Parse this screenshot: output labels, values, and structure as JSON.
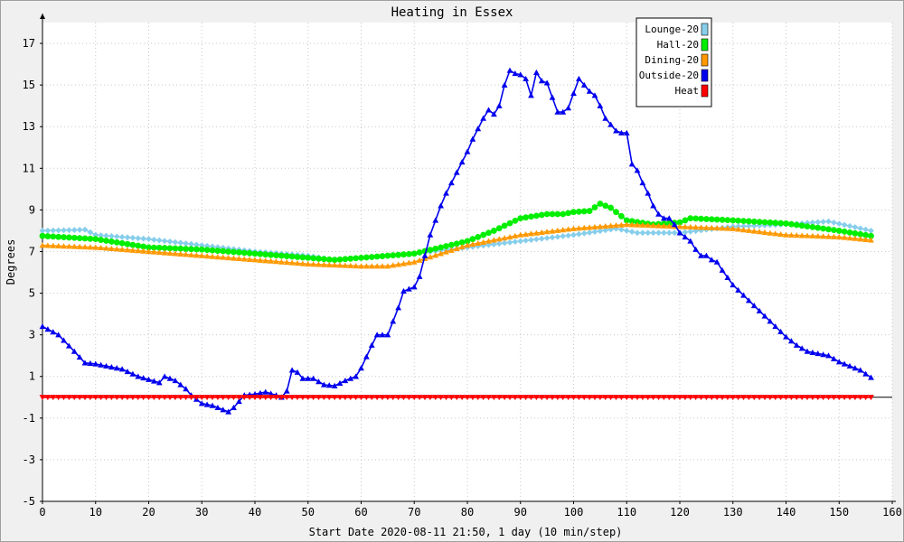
{
  "chart_data": {
    "type": "line",
    "title": "Heating in Essex",
    "xlabel": "Start Date 2020-08-11 21:50, 1 day (10 min/step)",
    "ylabel": "Degrees",
    "xlim": [
      0,
      160
    ],
    "ylim": [
      -5,
      18
    ],
    "xticks": [
      0,
      10,
      20,
      30,
      40,
      50,
      60,
      70,
      80,
      90,
      100,
      110,
      120,
      130,
      140,
      150,
      160
    ],
    "yticks": [
      -5,
      -3,
      -1,
      1,
      3,
      5,
      7,
      9,
      11,
      13,
      15,
      17
    ],
    "grid": true,
    "legend_position": "top-right",
    "colors": {
      "background": "#f0f0f0",
      "grid": "#c8c8c8",
      "axis": "#000000"
    },
    "series": [
      {
        "name": "Lounge-20",
        "color": "#87ceeb",
        "marker": "diamond",
        "points": [
          [
            0,
            8.0
          ],
          [
            8,
            8.05
          ],
          [
            10,
            7.8
          ],
          [
            20,
            7.6
          ],
          [
            30,
            7.3
          ],
          [
            40,
            7.0
          ],
          [
            50,
            6.8
          ],
          [
            55,
            6.6
          ],
          [
            60,
            6.7
          ],
          [
            70,
            6.9
          ],
          [
            80,
            7.2
          ],
          [
            90,
            7.5
          ],
          [
            100,
            7.8
          ],
          [
            108,
            8.1
          ],
          [
            112,
            7.9
          ],
          [
            120,
            7.9
          ],
          [
            130,
            8.2
          ],
          [
            140,
            8.3
          ],
          [
            148,
            8.45
          ],
          [
            156,
            8.0
          ]
        ]
      },
      {
        "name": "Hall-20",
        "color": "#00ee00",
        "marker": "circle",
        "points": [
          [
            0,
            7.75
          ],
          [
            10,
            7.6
          ],
          [
            20,
            7.2
          ],
          [
            30,
            7.1
          ],
          [
            40,
            6.9
          ],
          [
            50,
            6.7
          ],
          [
            55,
            6.6
          ],
          [
            60,
            6.7
          ],
          [
            70,
            6.9
          ],
          [
            80,
            7.5
          ],
          [
            85,
            8.0
          ],
          [
            90,
            8.6
          ],
          [
            95,
            8.8
          ],
          [
            98,
            8.8
          ],
          [
            100,
            8.9
          ],
          [
            103,
            8.95
          ],
          [
            105,
            9.3
          ],
          [
            107,
            9.1
          ],
          [
            110,
            8.5
          ],
          [
            115,
            8.3
          ],
          [
            120,
            8.4
          ],
          [
            122,
            8.6
          ],
          [
            130,
            8.5
          ],
          [
            140,
            8.35
          ],
          [
            150,
            8.0
          ],
          [
            156,
            7.75
          ]
        ]
      },
      {
        "name": "Dining-20",
        "color": "#ff9900",
        "marker": "triangle-up",
        "points": [
          [
            0,
            7.3
          ],
          [
            10,
            7.2
          ],
          [
            20,
            7.0
          ],
          [
            30,
            6.8
          ],
          [
            40,
            6.6
          ],
          [
            50,
            6.4
          ],
          [
            60,
            6.3
          ],
          [
            65,
            6.3
          ],
          [
            70,
            6.5
          ],
          [
            80,
            7.3
          ],
          [
            90,
            7.8
          ],
          [
            100,
            8.1
          ],
          [
            105,
            8.2
          ],
          [
            110,
            8.3
          ],
          [
            120,
            8.2
          ],
          [
            130,
            8.1
          ],
          [
            140,
            7.8
          ],
          [
            150,
            7.7
          ],
          [
            156,
            7.55
          ]
        ]
      },
      {
        "name": "Outside-20",
        "color": "#0000ee",
        "marker": "triangle-up",
        "points": [
          [
            0,
            3.4
          ],
          [
            3,
            3.0
          ],
          [
            6,
            2.2
          ],
          [
            8,
            1.65
          ],
          [
            10,
            1.6
          ],
          [
            12,
            1.5
          ],
          [
            15,
            1.35
          ],
          [
            18,
            1.0
          ],
          [
            20,
            0.85
          ],
          [
            22,
            0.7
          ],
          [
            23,
            1.0
          ],
          [
            25,
            0.8
          ],
          [
            27,
            0.4
          ],
          [
            28,
            0.1
          ],
          [
            30,
            -0.3
          ],
          [
            32,
            -0.4
          ],
          [
            34,
            -0.6
          ],
          [
            35,
            -0.7
          ],
          [
            36,
            -0.5
          ],
          [
            38,
            0.1
          ],
          [
            40,
            0.15
          ],
          [
            42,
            0.25
          ],
          [
            44,
            0.1
          ],
          [
            45,
            0.0
          ],
          [
            46,
            0.3
          ],
          [
            47,
            1.3
          ],
          [
            48,
            1.2
          ],
          [
            49,
            0.9
          ],
          [
            51,
            0.9
          ],
          [
            53,
            0.6
          ],
          [
            55,
            0.55
          ],
          [
            57,
            0.8
          ],
          [
            59,
            1.0
          ],
          [
            60,
            1.4
          ],
          [
            62,
            2.5
          ],
          [
            63,
            3.0
          ],
          [
            65,
            3.0
          ],
          [
            67,
            4.3
          ],
          [
            68,
            5.1
          ],
          [
            70,
            5.3
          ],
          [
            71,
            5.8
          ],
          [
            72,
            6.8
          ],
          [
            73,
            7.8
          ],
          [
            74,
            8.5
          ],
          [
            75,
            9.2
          ],
          [
            76,
            9.8
          ],
          [
            77,
            10.3
          ],
          [
            78,
            10.8
          ],
          [
            79,
            11.3
          ],
          [
            80,
            11.8
          ],
          [
            81,
            12.4
          ],
          [
            82,
            12.9
          ],
          [
            83,
            13.4
          ],
          [
            84,
            13.8
          ],
          [
            85,
            13.6
          ],
          [
            86,
            14.0
          ],
          [
            87,
            15.0
          ],
          [
            88,
            15.7
          ],
          [
            89,
            15.55
          ],
          [
            90,
            15.5
          ],
          [
            91,
            15.3
          ],
          [
            92,
            14.5
          ],
          [
            93,
            15.6
          ],
          [
            94,
            15.2
          ],
          [
            95,
            15.1
          ],
          [
            96,
            14.4
          ],
          [
            97,
            13.7
          ],
          [
            98,
            13.7
          ],
          [
            99,
            13.9
          ],
          [
            100,
            14.6
          ],
          [
            101,
            15.3
          ],
          [
            102,
            15.0
          ],
          [
            103,
            14.7
          ],
          [
            104,
            14.5
          ],
          [
            105,
            14.0
          ],
          [
            106,
            13.4
          ],
          [
            107,
            13.1
          ],
          [
            108,
            12.8
          ],
          [
            109,
            12.7
          ],
          [
            110,
            12.7
          ],
          [
            111,
            11.2
          ],
          [
            112,
            10.9
          ],
          [
            113,
            10.3
          ],
          [
            114,
            9.8
          ],
          [
            115,
            9.2
          ],
          [
            116,
            8.8
          ],
          [
            117,
            8.6
          ],
          [
            118,
            8.6
          ],
          [
            119,
            8.3
          ],
          [
            120,
            7.9
          ],
          [
            121,
            7.7
          ],
          [
            122,
            7.5
          ],
          [
            123,
            7.1
          ],
          [
            124,
            6.8
          ],
          [
            125,
            6.8
          ],
          [
            126,
            6.6
          ],
          [
            127,
            6.5
          ],
          [
            128,
            6.1
          ],
          [
            130,
            5.4
          ],
          [
            132,
            4.9
          ],
          [
            134,
            4.4
          ],
          [
            136,
            3.9
          ],
          [
            138,
            3.4
          ],
          [
            140,
            2.9
          ],
          [
            142,
            2.5
          ],
          [
            144,
            2.2
          ],
          [
            146,
            2.1
          ],
          [
            148,
            2.0
          ],
          [
            150,
            1.7
          ],
          [
            152,
            1.5
          ],
          [
            154,
            1.3
          ],
          [
            156,
            0.95
          ]
        ]
      },
      {
        "name": "Heat",
        "color": "#ff0000",
        "marker": "triangle-down",
        "points": [
          [
            0,
            0.0
          ],
          [
            156,
            0.0
          ]
        ]
      }
    ]
  }
}
